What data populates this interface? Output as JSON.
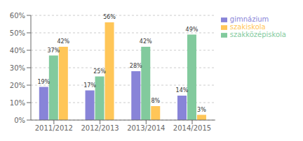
{
  "chart_data": {
    "type": "bar",
    "categories": [
      "2011/2012",
      "2012/2013",
      "2013/2014",
      "2014/2015"
    ],
    "series": [
      {
        "name": "gimnázium",
        "color": "#8884d8",
        "values": [
          19,
          17,
          28,
          14
        ],
        "value_labels": [
          "19%",
          "17%",
          "28%",
          "14%"
        ]
      },
      {
        "name": "szakközépiskola",
        "color": "#82ca9d",
        "values": [
          37,
          25,
          42,
          49
        ],
        "value_labels": [
          "37%",
          "25%",
          "42%",
          "49%"
        ]
      },
      {
        "name": "szakiskola",
        "color": "#ffc658",
        "values": [
          42,
          56,
          8,
          3
        ],
        "value_labels": [
          "42%",
          "56%",
          "8%",
          "3%"
        ]
      }
    ],
    "ylim": [
      0,
      60
    ],
    "yticks": [
      {
        "value": 0,
        "label": "0%"
      },
      {
        "value": 10,
        "label": "10%"
      },
      {
        "value": 20,
        "label": "20%"
      },
      {
        "value": 30,
        "label": "30%"
      },
      {
        "value": 40,
        "label": "40%"
      },
      {
        "value": 50,
        "label": "50%"
      },
      {
        "value": 60,
        "label": "60%"
      }
    ],
    "grid": true,
    "legend": "upper right",
    "data_labels": true
  }
}
